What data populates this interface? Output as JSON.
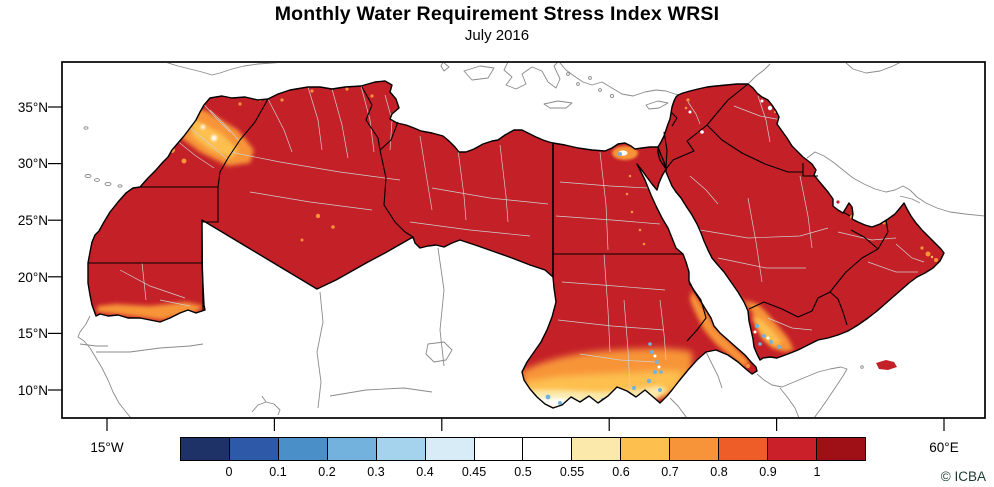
{
  "title": "Monthly Water Requirement Stress Index WRSI",
  "subtitle": "July 2016",
  "attribution": "© ICBA",
  "axes": {
    "lat_labels": [
      "35°N",
      "30°N",
      "25°N",
      "20°N",
      "15°N",
      "10°N"
    ],
    "lon_labels": [
      "15°W",
      "60°E"
    ]
  },
  "colorbar": {
    "tick_labels": [
      "0",
      "0.1",
      "0.2",
      "0.3",
      "0.4",
      "0.45",
      "0.5",
      "0.55",
      "0.6",
      "0.7",
      "0.8",
      "0.9",
      "1"
    ],
    "segment_colors": [
      "#1f3268",
      "#2e59a8",
      "#4a8fc7",
      "#72b2dd",
      "#a5d2ec",
      "#d8ecf8",
      "#ffffff",
      "#ffffff",
      "#fbe9ab",
      "#fdc04f",
      "#f79439",
      "#ee5d28",
      "#c9202a",
      "#9f1016"
    ]
  },
  "map": {
    "colors": {
      "data_fill": "#c42028",
      "country_border": "#000000",
      "admin_border": "#cfcfcf",
      "coastline": "#8a8a8a",
      "sea": "#ffffff",
      "attribution_text": "#1d3b31"
    }
  }
}
